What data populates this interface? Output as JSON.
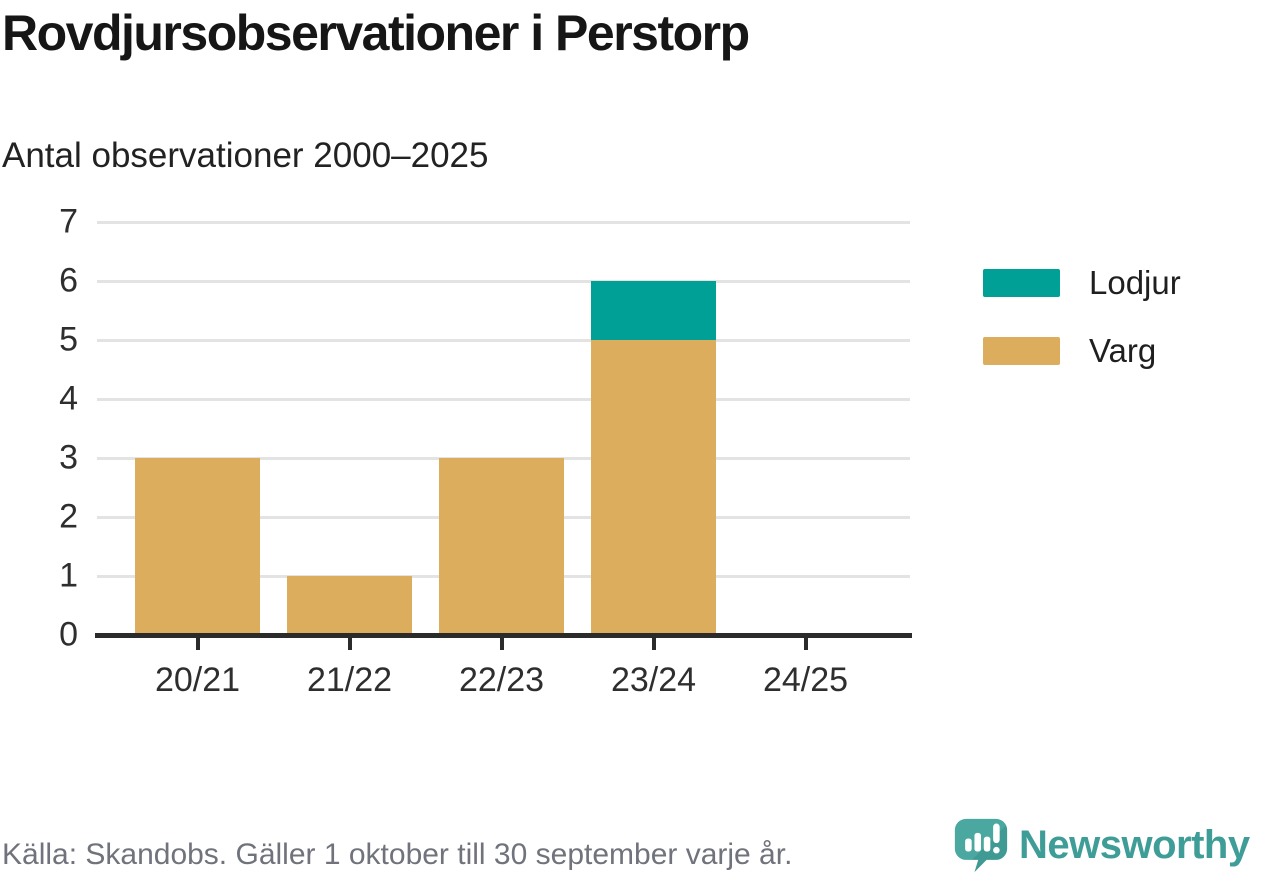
{
  "header": {
    "title": "Rovdjursobservationer i Perstorp",
    "subtitle": "Antal observationer 2000–2025"
  },
  "chart_data": {
    "type": "bar",
    "stacked": true,
    "title": "Rovdjursobservationer i Perstorp",
    "subtitle": "Antal observationer 2000–2025",
    "categories": [
      "20/21",
      "21/22",
      "22/23",
      "23/24",
      "24/25"
    ],
    "series": [
      {
        "name": "Varg",
        "color": "#dbad5c",
        "values": [
          3,
          1,
          3,
          5,
          0
        ]
      },
      {
        "name": "Lodjur",
        "color": "#00a096",
        "values": [
          0,
          0,
          0,
          1,
          0
        ]
      }
    ],
    "totals": [
      3,
      1,
      3,
      6,
      0
    ],
    "ylim": [
      0,
      7
    ],
    "yticks": [
      0,
      1,
      2,
      3,
      4,
      5,
      6,
      7
    ],
    "xlabel": "",
    "ylabel": "",
    "grid": true,
    "gridline_color": "#e3e3e3",
    "axis_color": "#2b2b2b",
    "legend": {
      "position": "right",
      "items": [
        {
          "label": "Lodjur",
          "color": "#00a096"
        },
        {
          "label": "Varg",
          "color": "#dbad5c"
        }
      ]
    }
  },
  "footer": {
    "source": "Källa: Skandobs. Gäller 1 oktober till 30 september varje år.",
    "brand": "Newsworthy",
    "brand_color": "#3f9d98",
    "icon_color": "#4aa8a1"
  }
}
